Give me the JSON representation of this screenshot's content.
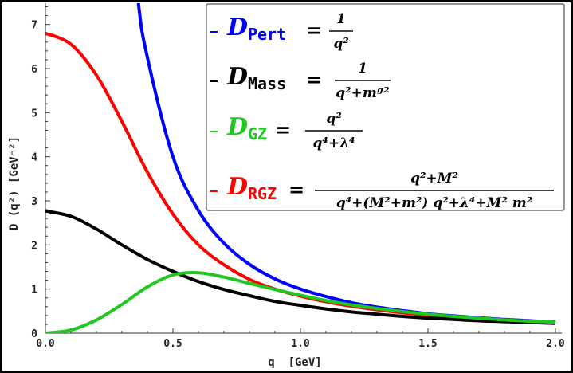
{
  "chart_data": {
    "type": "line",
    "xlabel": "q  [GeV]",
    "ylabel": "D (q²) [GeV⁻²]",
    "xlim": [
      0.0,
      2.0
    ],
    "ylim": [
      0,
      7.5
    ],
    "x_ticks": [
      "0.0",
      "0.5",
      "1.0",
      "1.5",
      "2.0"
    ],
    "y_ticks": [
      "0",
      "1",
      "2",
      "3",
      "4",
      "5",
      "6",
      "7"
    ],
    "grid": false,
    "legend_position": "top-right",
    "x": [
      0.0,
      0.1,
      0.2,
      0.3,
      0.4,
      0.5,
      0.6,
      0.7,
      0.8,
      0.9,
      1.0,
      1.1,
      1.2,
      1.3,
      1.4,
      1.5,
      1.6,
      1.7,
      1.8,
      1.9,
      2.0
    ],
    "series": [
      {
        "name": "D_Pert",
        "color": "#0000ff",
        "formula": {
          "lhs": "D",
          "sub": "Pert",
          "num": "1",
          "den": "q²"
        },
        "values": [
          null,
          null,
          null,
          null,
          6.25,
          4.0,
          2.78,
          2.04,
          1.56,
          1.23,
          1.0,
          0.83,
          0.69,
          0.59,
          0.51,
          0.44,
          0.39,
          0.35,
          0.31,
          0.28,
          0.25
        ]
      },
      {
        "name": "D_Mass",
        "color": "#000000",
        "formula": {
          "lhs": "D",
          "sub": "Mass",
          "num": "1",
          "den": "q²+mᵍ²"
        },
        "values": [
          2.77,
          2.65,
          2.36,
          2.0,
          1.67,
          1.4,
          1.17,
          0.99,
          0.85,
          0.72,
          0.63,
          0.55,
          0.48,
          0.43,
          0.38,
          0.34,
          0.31,
          0.28,
          0.26,
          0.24,
          0.22
        ]
      },
      {
        "name": "D_GZ",
        "color": "#1ec81e",
        "formula": {
          "lhs": "D",
          "sub": "GZ",
          "num": "q²",
          "den": "q⁴+λ⁴"
        },
        "values": [
          0.0,
          0.07,
          0.3,
          0.65,
          1.05,
          1.32,
          1.37,
          1.27,
          1.13,
          0.99,
          0.86,
          0.74,
          0.64,
          0.56,
          0.49,
          0.43,
          0.38,
          0.34,
          0.3,
          0.27,
          0.25
        ]
      },
      {
        "name": "D_RGZ",
        "color": "#ff0000",
        "formula": {
          "lhs": "D",
          "sub": "RGZ",
          "num": "q²+M²",
          "den": "q⁴+(M²+m²) q²+λ⁴+M² m²"
        },
        "values": [
          6.8,
          6.55,
          5.85,
          4.8,
          3.65,
          2.7,
          2.0,
          1.55,
          1.22,
          1.0,
          0.84,
          0.71,
          0.61,
          0.53,
          0.46,
          0.41,
          0.36,
          0.33,
          0.29,
          0.27,
          0.24
        ]
      }
    ]
  }
}
